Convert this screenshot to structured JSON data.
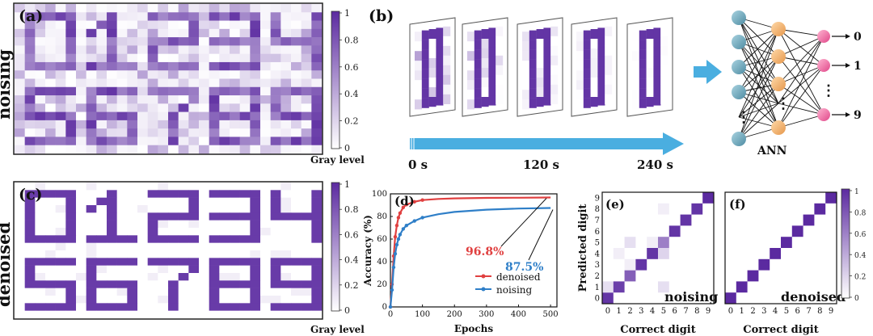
{
  "colors": {
    "purple": "#5b2aa0",
    "accent_red": "#e04040",
    "accent_blue": "#2f7fc8",
    "arrow": "#4aaee0",
    "input_node": "#6aa3b8",
    "hidden_node": "#f0b070",
    "output_node": "#f07aa8"
  },
  "panels": {
    "a": {
      "label": "(a)",
      "side_label": "noising",
      "colorbar_title": "Gray level",
      "colorbar_ticks": [
        "1",
        "0.8",
        "0.6",
        "0.4",
        "0.2",
        "0"
      ]
    },
    "b": {
      "label": "(b)",
      "times": [
        "0 s",
        "120 s",
        "240 s"
      ],
      "ann_label": "ANN",
      "outputs": [
        "0",
        "1",
        "9"
      ],
      "ellipsis": "⋮"
    },
    "c": {
      "label": "(c)",
      "side_label": "denoised",
      "colorbar_title": "Gray level",
      "colorbar_ticks": [
        "1",
        "0.8",
        "0.6",
        "0.4",
        "0.2",
        "0"
      ]
    },
    "d": {
      "label": "(d)"
    },
    "e": {
      "label": "(e)",
      "inner_label": "noising"
    },
    "f": {
      "label": "(f)",
      "inner_label": "denoised",
      "colorbar_ticks": [
        "1",
        "0.8",
        "0.6",
        "0.4",
        "0.2",
        "0"
      ]
    }
  },
  "chart_data": [
    {
      "type": "line",
      "panel": "(d)",
      "title": "",
      "xlabel": "Epochs",
      "ylabel": "Accuracy (%)",
      "xlim": [
        0,
        520
      ],
      "ylim": [
        0,
        100
      ],
      "xticks": [
        0,
        100,
        200,
        300,
        400,
        500
      ],
      "yticks": [
        0,
        20,
        40,
        60,
        80,
        100
      ],
      "legend": "bottom-right",
      "series": [
        {
          "name": "denoised",
          "color": "#e04040",
          "x": [
            0,
            5,
            10,
            15,
            20,
            25,
            30,
            40,
            50,
            75,
            100,
            150,
            200,
            300,
            400,
            500
          ],
          "y": [
            0,
            20,
            45,
            62,
            72,
            79,
            83,
            88,
            90.5,
            93,
            94.5,
            95.5,
            96,
            96.4,
            96.6,
            96.8
          ]
        },
        {
          "name": "noising",
          "color": "#2f7fc8",
          "x": [
            0,
            5,
            10,
            15,
            20,
            25,
            30,
            40,
            50,
            75,
            100,
            150,
            200,
            300,
            400,
            500
          ],
          "y": [
            0,
            15,
            35,
            47,
            55,
            60,
            64,
            69,
            72,
            76,
            79,
            82,
            84,
            86,
            87,
            87.5
          ]
        }
      ],
      "annotations": [
        {
          "text": "96.8%",
          "color": "#e04040"
        },
        {
          "text": "87.5%",
          "color": "#2f7fc8"
        }
      ]
    },
    {
      "type": "heatmap",
      "panel": "(e)",
      "title": "noising",
      "xlabel": "Correct digit",
      "ylabel": "Predicted digit",
      "x_categories": [
        "0",
        "1",
        "2",
        "3",
        "4",
        "5",
        "6",
        "7",
        "8",
        "9"
      ],
      "y_categories": [
        "0",
        "1",
        "2",
        "3",
        "4",
        "5",
        "6",
        "7",
        "8",
        "9"
      ],
      "diagonal": [
        0.95,
        0.9,
        0.75,
        0.95,
        0.95,
        0.6,
        0.95,
        0.95,
        0.95,
        1.0
      ],
      "off_diagonal": [
        {
          "x": "0",
          "y": "1",
          "value": 0.15
        },
        {
          "x": "2",
          "y": "5",
          "value": 0.15
        },
        {
          "x": "5",
          "y": "1",
          "value": 0.15
        },
        {
          "x": "5",
          "y": "4",
          "value": 0.2
        },
        {
          "x": "1",
          "y": "4",
          "value": 0.08
        },
        {
          "x": "5",
          "y": "8",
          "value": 0.08
        },
        {
          "x": "2",
          "y": "3",
          "value": 0.08
        },
        {
          "x": "4",
          "y": "5",
          "value": 0.08
        }
      ],
      "zlim": [
        0,
        1
      ]
    },
    {
      "type": "heatmap",
      "panel": "(f)",
      "title": "denoised",
      "xlabel": "Correct digit",
      "ylabel": "",
      "x_categories": [
        "0",
        "1",
        "2",
        "3",
        "4",
        "5",
        "6",
        "7",
        "8",
        "9"
      ],
      "y_categories": [
        "0",
        "1",
        "2",
        "3",
        "4",
        "5",
        "6",
        "7",
        "8",
        "9"
      ],
      "diagonal": [
        1,
        1,
        1,
        1,
        1,
        1,
        1,
        1,
        1,
        1
      ],
      "off_diagonal": [],
      "zlim": [
        0,
        1
      ]
    }
  ]
}
